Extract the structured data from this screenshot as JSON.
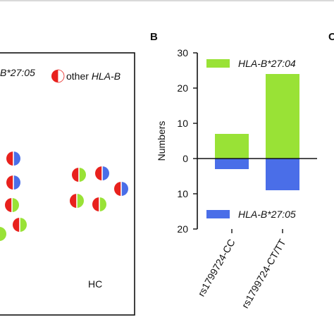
{
  "panel_letters": {
    "b": "B",
    "c": "C"
  },
  "left_panel": {
    "legend_partial_label": "B*27:05",
    "legend_other_label": "other ",
    "legend_other_italic": "HLA-B",
    "group_label": "HC",
    "colors": {
      "red": "#e8211d",
      "green": "#99e236",
      "blue": "#4a6ee8"
    }
  },
  "chart_data": {
    "type": "bar",
    "categories": [
      "rs1799724-CC",
      "rs1799724-CT/TT"
    ],
    "series": [
      {
        "name": "HLA-B*27:04",
        "color": "#99e236",
        "direction": "up",
        "values": [
          7,
          24
        ]
      },
      {
        "name": "HLA-B*27:05",
        "color": "#4a6ee8",
        "direction": "down",
        "values": [
          3,
          9
        ]
      }
    ],
    "ylabel": "Numbers",
    "ylim": [
      -20,
      30
    ],
    "ytick_labels": [
      "30",
      "20",
      "10",
      "0",
      "10",
      "20"
    ],
    "ytick_values": [
      30,
      20,
      10,
      0,
      -10,
      -20
    ],
    "zero_line": true
  }
}
